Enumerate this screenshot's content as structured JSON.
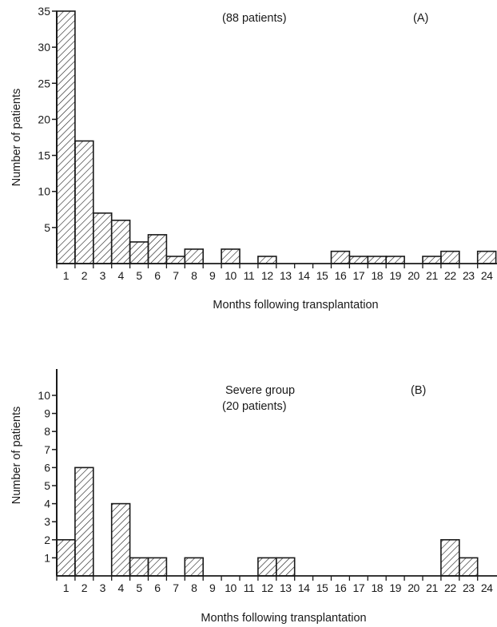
{
  "chart_data": [
    {
      "type": "bar",
      "panel_label": "(A)",
      "annotation": "(88 patients)",
      "xlabel": "Months following transplantation",
      "ylabel": "Number of patients",
      "categories": [
        "1",
        "2",
        "3",
        "4",
        "5",
        "6",
        "7",
        "8",
        "9",
        "10",
        "11",
        "12",
        "13",
        "14",
        "15",
        "16",
        "17",
        "18",
        "19",
        "20",
        "21",
        "22",
        "23",
        "24"
      ],
      "values": [
        35,
        17,
        7,
        6,
        3,
        4,
        1,
        2,
        0,
        2,
        0,
        1,
        0,
        0,
        0,
        1.7,
        1,
        1,
        1,
        0,
        1,
        1.7,
        0,
        1.7
      ],
      "yticks": [
        "5",
        "10",
        "15",
        "20",
        "25",
        "30",
        "35"
      ],
      "ylim": [
        0,
        35
      ],
      "pattern": "diagonal-hatch",
      "bar_color": "#1a1a1a"
    },
    {
      "type": "bar",
      "panel_label": "(B)",
      "annotation": [
        "Severe group",
        "(20 patients)"
      ],
      "xlabel": "Months following transplantation",
      "ylabel": "Number of patients",
      "categories": [
        "1",
        "2",
        "3",
        "4",
        "5",
        "6",
        "7",
        "8",
        "9",
        "10",
        "11",
        "12",
        "13",
        "14",
        "15",
        "16",
        "17",
        "18",
        "19",
        "20",
        "21",
        "22",
        "23",
        "24"
      ],
      "values": [
        2,
        6,
        0,
        4,
        1,
        1,
        0,
        1,
        0,
        0,
        0,
        1,
        1,
        0,
        0,
        0,
        0,
        0,
        0,
        0,
        0,
        2,
        1,
        0
      ],
      "yticks": [
        "1",
        "2",
        "3",
        "4",
        "5",
        "6",
        "7",
        "8",
        "9",
        "10"
      ],
      "ylim": [
        0,
        11
      ],
      "pattern": "diagonal-hatch",
      "bar_color": "#1a1a1a"
    }
  ]
}
